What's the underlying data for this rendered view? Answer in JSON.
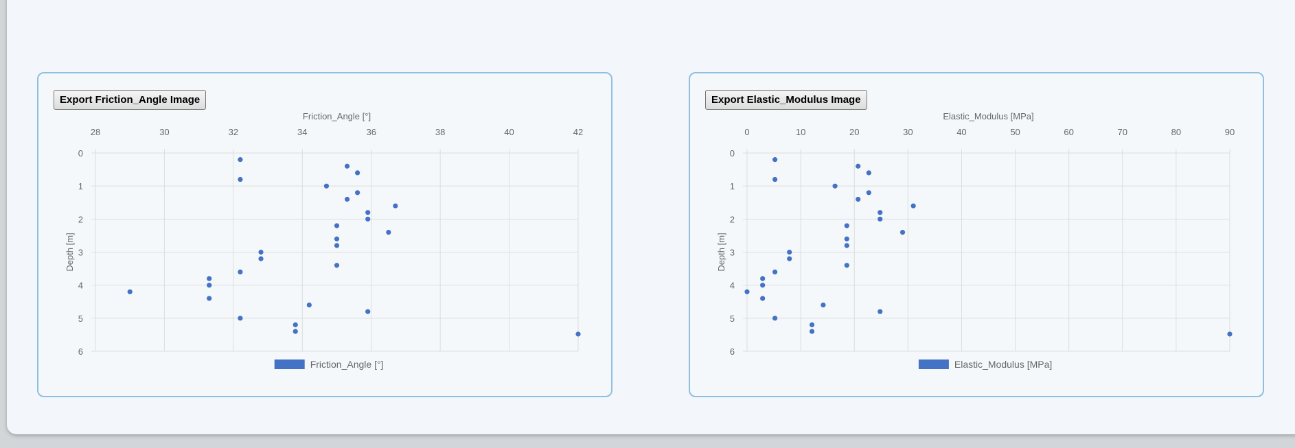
{
  "charts": [
    {
      "export_label": "Export Friction_Angle Image",
      "chart_data": {
        "type": "scatter",
        "title": "Friction_Angle [°]",
        "xlabel": "Friction_Angle [°]",
        "ylabel": "Depth [m]",
        "x_position": "top",
        "y_reversed": true,
        "xlim": [
          28,
          42
        ],
        "ylim": [
          0,
          6
        ],
        "xticks": [
          28,
          30,
          32,
          34,
          36,
          38,
          40,
          42
        ],
        "yticks": [
          0,
          1,
          2,
          3,
          4,
          5,
          6
        ],
        "grid": true,
        "legend_position": "bottom",
        "color": "#4472c4",
        "series": [
          {
            "name": "Friction_Angle [°]",
            "points": [
              [
                32.2,
                0.2
              ],
              [
                35.3,
                0.4
              ],
              [
                35.6,
                0.6
              ],
              [
                32.2,
                0.8
              ],
              [
                34.7,
                1.0
              ],
              [
                35.6,
                1.2
              ],
              [
                35.3,
                1.4
              ],
              [
                36.7,
                1.6
              ],
              [
                35.9,
                1.8
              ],
              [
                35.9,
                2.0
              ],
              [
                35.0,
                2.2
              ],
              [
                36.5,
                2.4
              ],
              [
                35.0,
                2.6
              ],
              [
                35.0,
                2.8
              ],
              [
                32.8,
                3.0
              ],
              [
                32.8,
                3.2
              ],
              [
                35.0,
                3.4
              ],
              [
                32.2,
                3.6
              ],
              [
                31.3,
                3.8
              ],
              [
                31.3,
                4.0
              ],
              [
                29.0,
                4.2
              ],
              [
                31.3,
                4.4
              ],
              [
                34.2,
                4.6
              ],
              [
                35.9,
                4.8
              ],
              [
                32.2,
                5.0
              ],
              [
                33.8,
                5.2
              ],
              [
                33.8,
                5.4
              ],
              [
                42.0,
                5.48
              ]
            ]
          }
        ]
      }
    },
    {
      "export_label": "Export Elastic_Modulus Image",
      "chart_data": {
        "type": "scatter",
        "title": "Elastic_Modulus [MPa]",
        "xlabel": "Elastic_Modulus [MPa]",
        "ylabel": "Depth [m]",
        "x_position": "top",
        "y_reversed": true,
        "xlim": [
          0,
          90
        ],
        "ylim": [
          0,
          6
        ],
        "xticks": [
          0,
          10,
          20,
          30,
          40,
          50,
          60,
          70,
          80,
          90
        ],
        "yticks": [
          0,
          1,
          2,
          3,
          4,
          5,
          6
        ],
        "grid": true,
        "legend_position": "bottom",
        "color": "#4472c4",
        "series": [
          {
            "name": "Elastic_Modulus [MPa]",
            "points": [
              [
                5.2,
                0.2
              ],
              [
                20.7,
                0.4
              ],
              [
                22.7,
                0.6
              ],
              [
                5.2,
                0.8
              ],
              [
                16.4,
                1.0
              ],
              [
                22.7,
                1.2
              ],
              [
                20.7,
                1.4
              ],
              [
                31.0,
                1.6
              ],
              [
                24.8,
                1.8
              ],
              [
                24.8,
                2.0
              ],
              [
                18.6,
                2.2
              ],
              [
                29.0,
                2.4
              ],
              [
                18.6,
                2.6
              ],
              [
                18.6,
                2.8
              ],
              [
                7.9,
                3.0
              ],
              [
                7.9,
                3.2
              ],
              [
                18.6,
                3.4
              ],
              [
                5.2,
                3.6
              ],
              [
                2.9,
                3.8
              ],
              [
                2.9,
                4.0
              ],
              [
                0.0,
                4.2
              ],
              [
                2.9,
                4.4
              ],
              [
                14.2,
                4.6
              ],
              [
                24.8,
                4.8
              ],
              [
                5.2,
                5.0
              ],
              [
                12.1,
                5.2
              ],
              [
                12.1,
                5.4
              ],
              [
                90.0,
                5.48
              ]
            ]
          }
        ]
      }
    }
  ]
}
